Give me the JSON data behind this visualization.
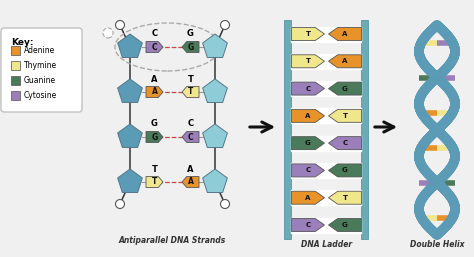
{
  "bg_color": "#f0f0f0",
  "colors": {
    "adenine": "#E8922A",
    "thymine": "#F0E68C",
    "guanine": "#4A7A5A",
    "cytosine": "#9B7FBB",
    "backbone_left": "#5B9BB5",
    "backbone_right": "#8ECDD8",
    "strand_line": "#333333",
    "circle_fill": "#ffffff",
    "ladder_rail": "#6AABB5",
    "arrow_color": "#111111",
    "dashed_line": "#CC4444",
    "base_edge": "#555555",
    "key_edge": "#aaaaaa"
  },
  "key_items": [
    {
      "label": "Adenine",
      "color": "#E8922A"
    },
    {
      "label": "Thymine",
      "color": "#F0E68C"
    },
    {
      "label": "Guanine",
      "color": "#4A7A5A"
    },
    {
      "label": "Cytosine",
      "color": "#9B7FBB"
    }
  ],
  "strand_pairs": [
    {
      "left": "C",
      "left_color": "#9B7FBB",
      "right": "G",
      "right_color": "#4A7A5A",
      "top_circled": true
    },
    {
      "left": "A",
      "left_color": "#E8922A",
      "right": "T",
      "right_color": "#F0E68C",
      "top_circled": false
    },
    {
      "left": "G",
      "left_color": "#4A7A5A",
      "right": "C",
      "right_color": "#9B7FBB",
      "top_circled": false
    },
    {
      "left": "T",
      "left_color": "#F0E68C",
      "right": "A",
      "right_color": "#E8922A",
      "top_circled": false
    }
  ],
  "ladder_pairs": [
    {
      "left": "C",
      "left_color": "#9B7FBB",
      "right": "G",
      "right_color": "#4A7A5A"
    },
    {
      "left": "A",
      "left_color": "#E8922A",
      "right": "T",
      "right_color": "#F0E68C"
    },
    {
      "left": "C",
      "left_color": "#9B7FBB",
      "right": "G",
      "right_color": "#4A7A5A"
    },
    {
      "left": "G",
      "left_color": "#4A7A5A",
      "right": "C",
      "right_color": "#9B7FBB"
    },
    {
      "left": "A",
      "left_color": "#E8922A",
      "right": "T",
      "right_color": "#F0E68C"
    },
    {
      "left": "C",
      "left_color": "#9B7FBB",
      "right": "G",
      "right_color": "#4A7A5A"
    },
    {
      "left": "T",
      "left_color": "#F0E68C",
      "right": "A",
      "right_color": "#E8922A"
    },
    {
      "left": "T",
      "left_color": "#F0E68C",
      "right": "A",
      "right_color": "#E8922A"
    }
  ],
  "helix_pair_colors": [
    [
      "#E8922A",
      "#F0E68C"
    ],
    [
      "#9B7FBB",
      "#4A7A5A"
    ],
    [
      "#F0E68C",
      "#E8922A"
    ],
    [
      "#E8922A",
      "#F0E68C"
    ],
    [
      "#9B7FBB",
      "#4A7A5A"
    ],
    [
      "#F0E68C",
      "#9B7FBB"
    ]
  ],
  "labels": {
    "strand": "Antiparallel DNA Strands",
    "ladder": "DNA Ladder",
    "helix": "Double Helix"
  }
}
